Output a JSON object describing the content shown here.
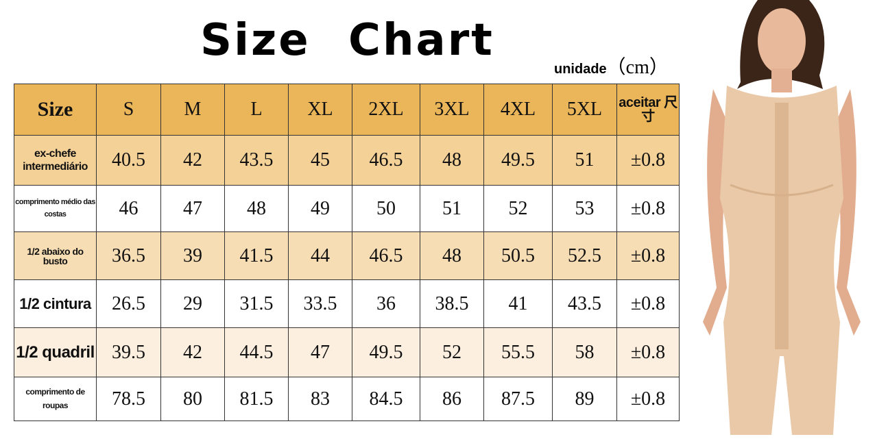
{
  "title": "Size Chart",
  "unit": {
    "label": "unidade",
    "suffix": "（cm）"
  },
  "table": {
    "header": [
      "Size",
      "S",
      "M",
      "L",
      "XL",
      "2XL",
      "3XL",
      "4XL",
      "5XL",
      "aceitar 尺寸"
    ],
    "rows": [
      [
        "ex-chefe intermediário",
        40.5,
        42,
        43.5,
        45,
        46.5,
        48,
        49.5,
        51,
        "±0.8"
      ],
      [
        "comprimento médio das costas",
        46,
        47,
        48,
        49,
        50,
        51,
        52,
        53,
        "±0.8"
      ],
      [
        "1/2 abaixo do busto",
        36.5,
        39,
        41.5,
        44,
        46.5,
        48,
        50.5,
        52.5,
        "±0.8"
      ],
      [
        "1/2 cintura",
        26.5,
        29,
        31.5,
        33.5,
        36,
        38.5,
        41,
        43.5,
        "±0.8"
      ],
      [
        "1/2 quadril",
        39.5,
        42,
        44.5,
        47,
        49.5,
        52,
        55.5,
        58,
        "±0.8"
      ],
      [
        "comprimento de roupas",
        78.5,
        80,
        81.5,
        83,
        84.5,
        86,
        87.5,
        89,
        "±0.8"
      ]
    ]
  }
}
